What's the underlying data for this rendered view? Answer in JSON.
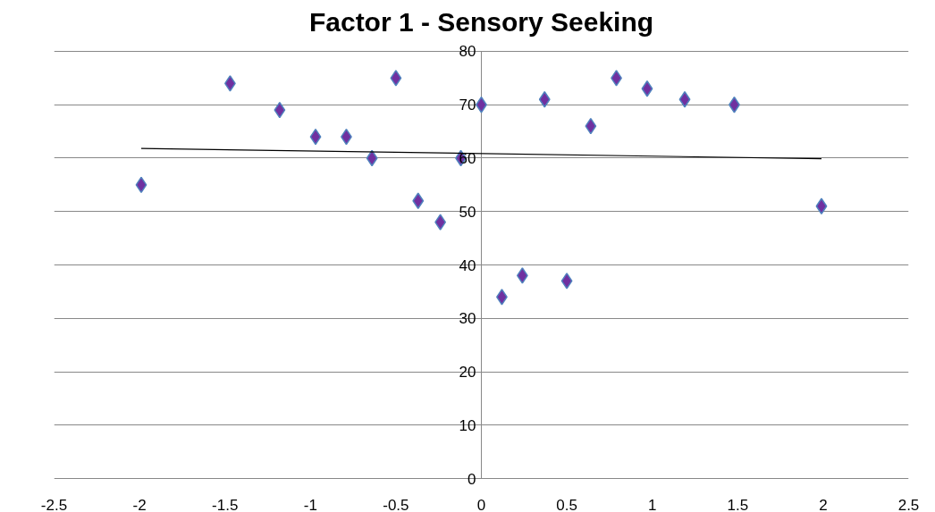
{
  "chart_data": {
    "type": "scatter",
    "title": "Factor 1 - Sensory Seeking",
    "x": [
      -1.99,
      -1.47,
      -1.18,
      -0.97,
      -0.79,
      -0.64,
      -0.5,
      -0.37,
      -0.24,
      -0.12,
      0.0,
      0.12,
      0.24,
      0.37,
      0.5,
      0.64,
      0.79,
      0.97,
      1.19,
      1.48,
      1.99
    ],
    "series": [
      {
        "color": "#7030a0",
        "marker": "diamond",
        "values": [
          55,
          74,
          69,
          64,
          64,
          60,
          75,
          52,
          48,
          60,
          70,
          34,
          38,
          71,
          37,
          66,
          75,
          73,
          71,
          70,
          51
        ]
      },
      {
        "type": "line",
        "marker": "none",
        "color": "#000000",
        "x": [
          -1.99,
          1.99
        ],
        "values": [
          61.8,
          59.9
        ]
      }
    ],
    "grid": "y",
    "xlim": [
      -2.5,
      2.5
    ],
    "xticks": [
      -2.5,
      -2,
      -1.5,
      -1,
      -0.5,
      0,
      0.5,
      1,
      1.5,
      2,
      2.5
    ],
    "ylim": [
      0,
      80
    ],
    "yticks": [
      0,
      10,
      20,
      30,
      40,
      50,
      60,
      70,
      80
    ]
  }
}
